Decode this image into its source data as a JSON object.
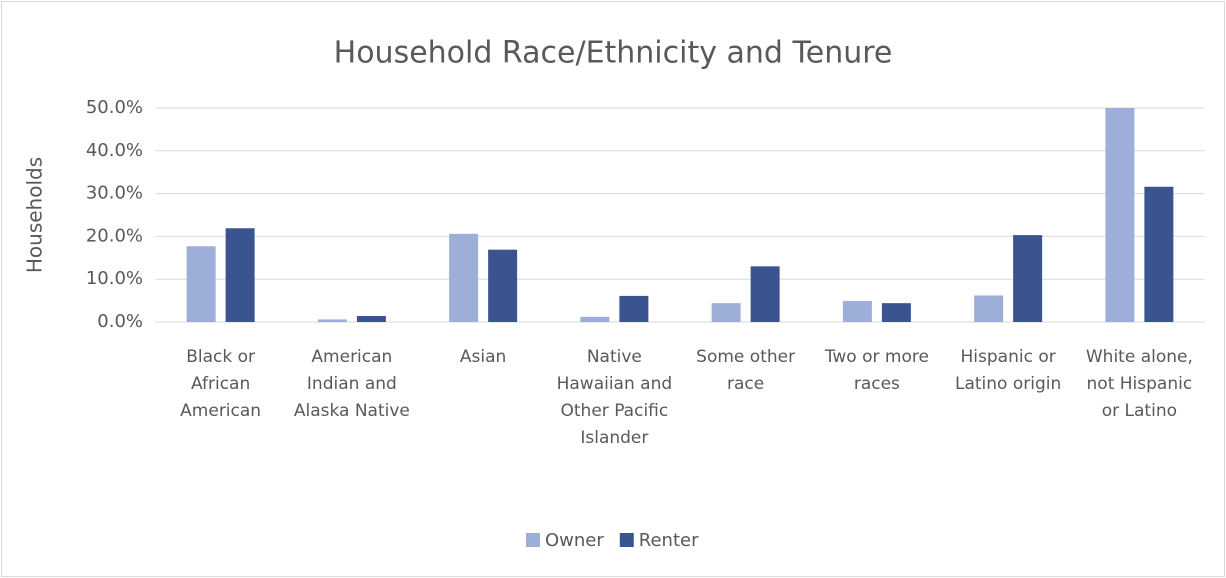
{
  "chart_data": {
    "type": "bar",
    "title": "Household Race/Ethnicity and Tenure",
    "y_label": "Households",
    "categories": [
      "Black or African American",
      "American Indian and Alaska Native",
      "Asian",
      "Native Hawaiian and Other Pacific Islander",
      "Some other race",
      "Two or more races",
      "Hispanic or Latino origin",
      "White alone, not Hispanic or Latino"
    ],
    "series": [
      {
        "name": "Owner",
        "color": "#9dafd8",
        "values": [
          17.7,
          0.6,
          20.6,
          1.2,
          4.4,
          4.9,
          6.2,
          50.0
        ]
      },
      {
        "name": "Renter",
        "color": "#3a5490",
        "values": [
          21.9,
          1.4,
          16.9,
          6.1,
          13.0,
          4.4,
          20.3,
          31.6
        ]
      }
    ],
    "ylim": [
      0,
      50
    ],
    "yticks": [
      {
        "value": 0,
        "label": "0.0%"
      },
      {
        "value": 10,
        "label": "10.0%"
      },
      {
        "value": 20,
        "label": "20.0%"
      },
      {
        "value": 30,
        "label": "30.0%"
      },
      {
        "value": 40,
        "label": "40.0%"
      },
      {
        "value": 50,
        "label": "50.0%"
      }
    ],
    "grid": true,
    "legend": "bottom"
  }
}
